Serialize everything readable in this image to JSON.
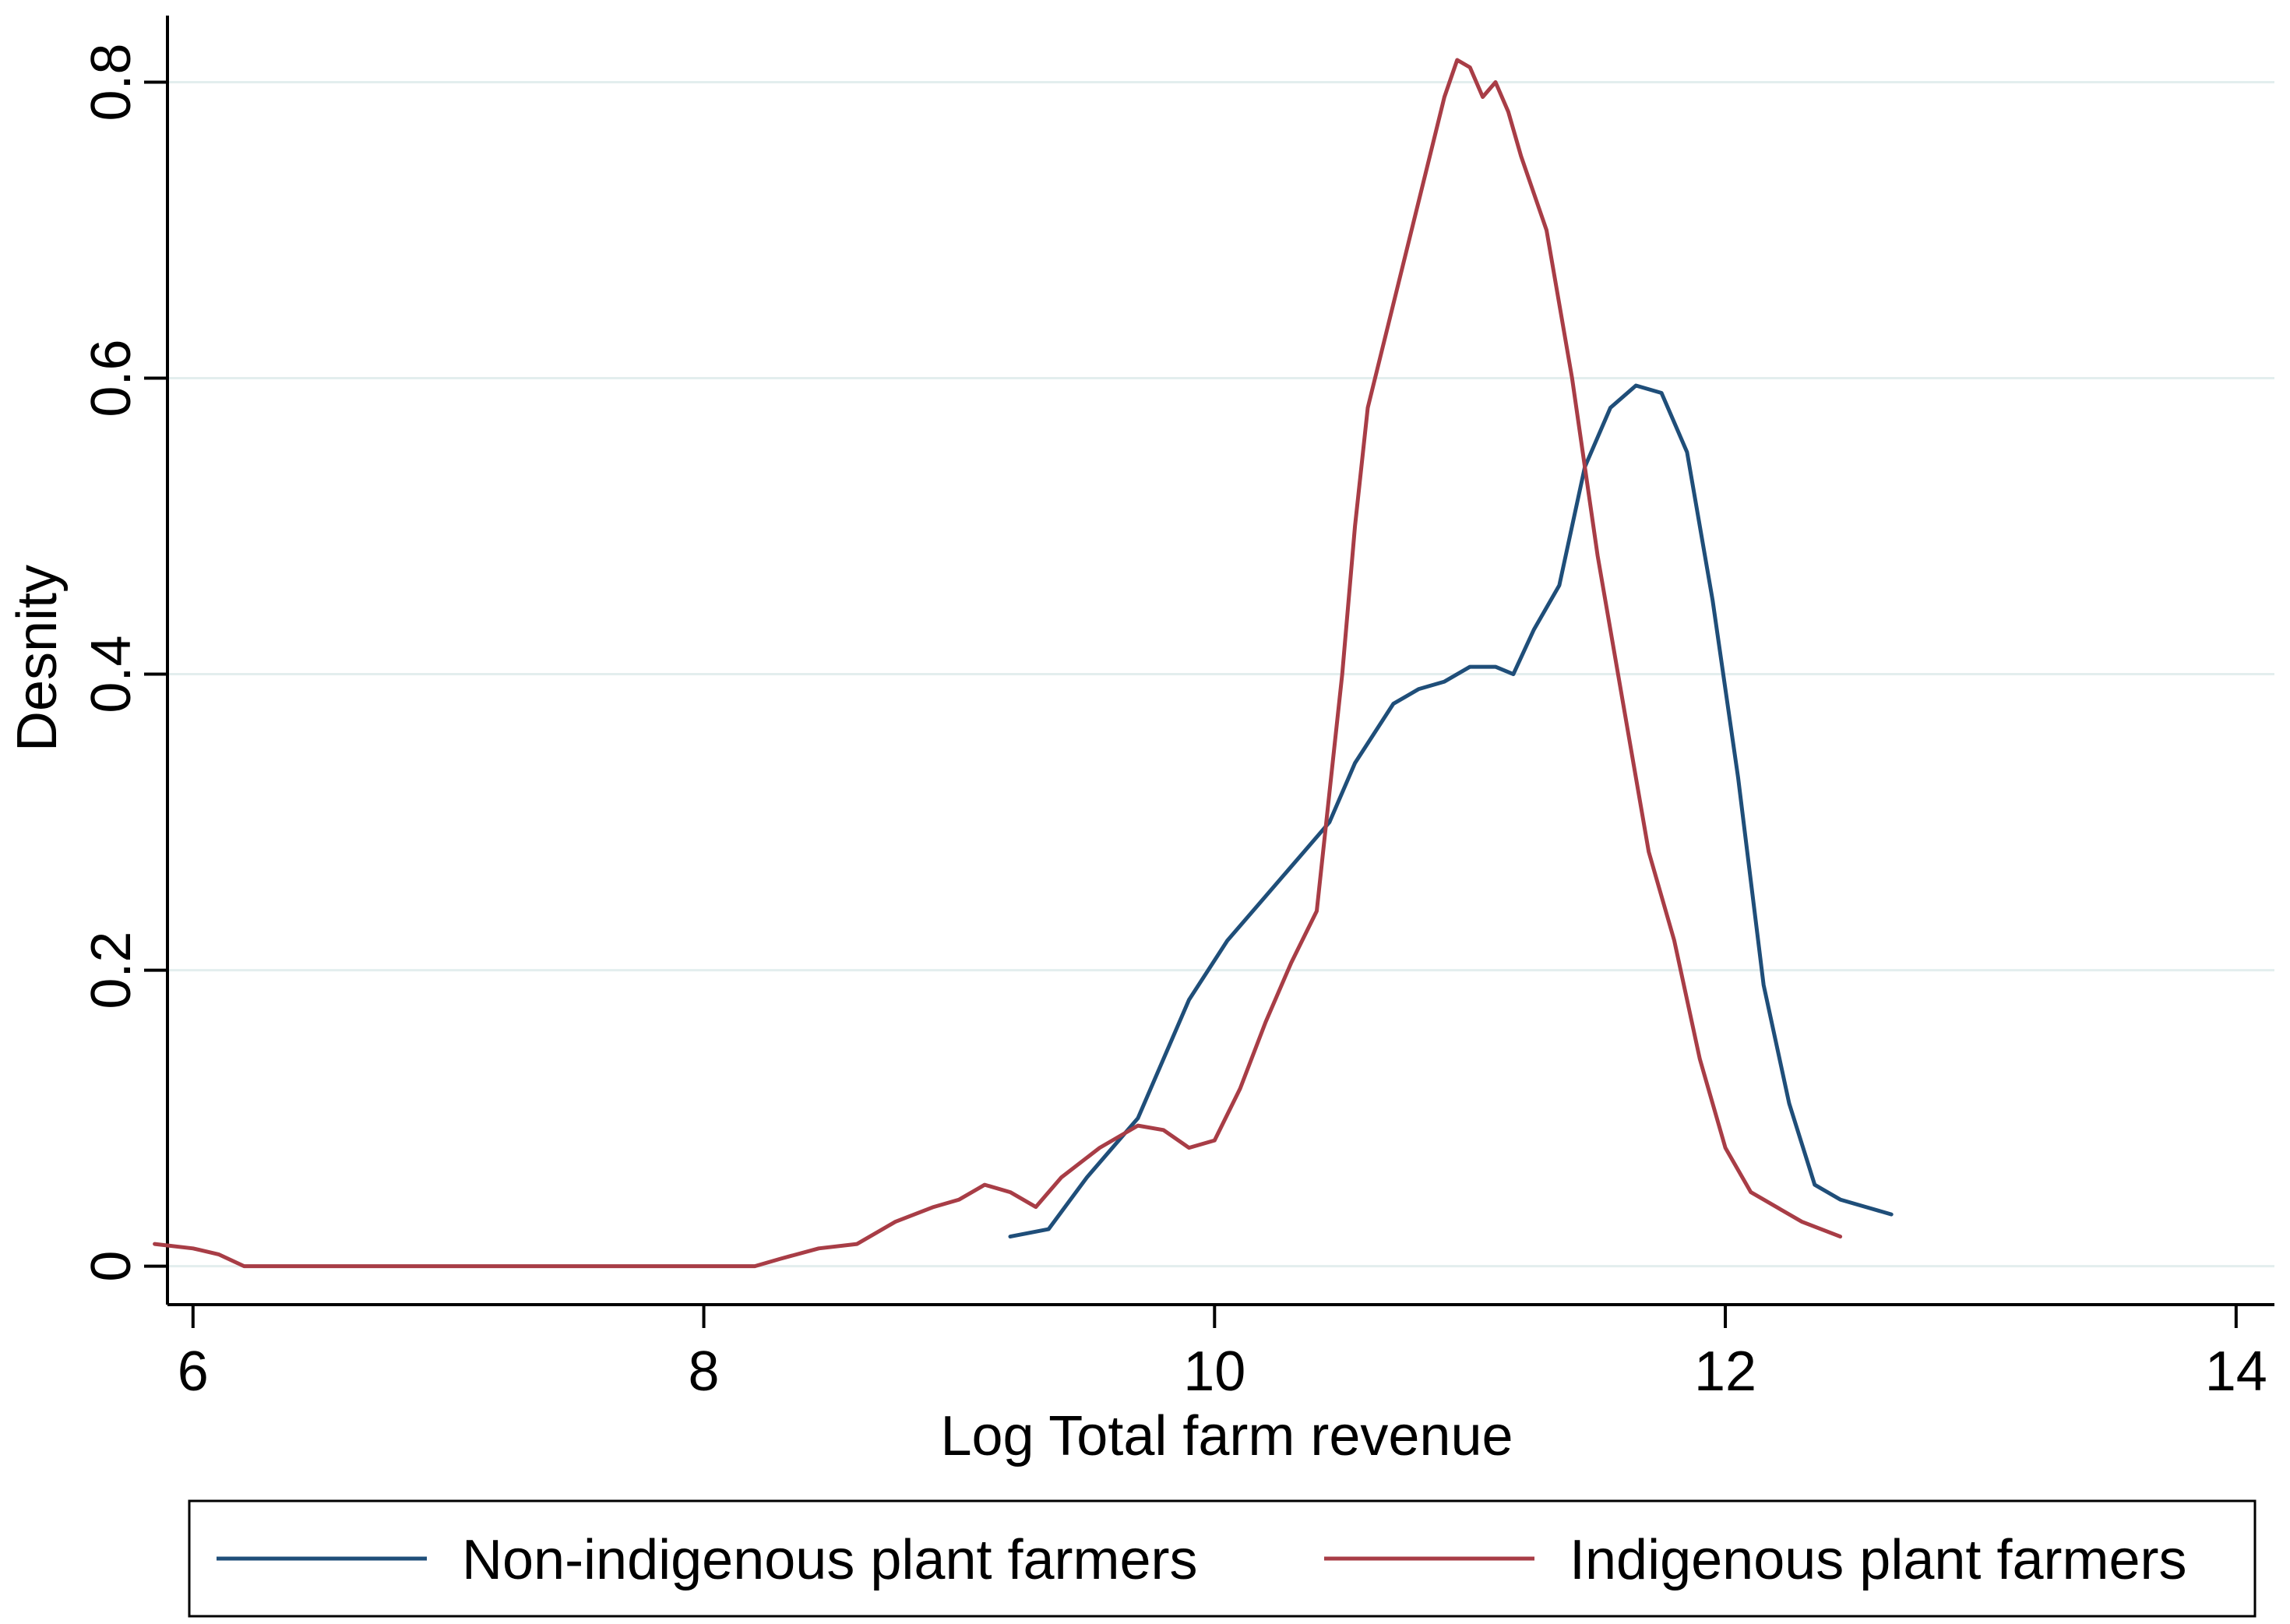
{
  "chart_data": {
    "type": "line",
    "xlabel": "Log Total farm revenue",
    "ylabel": "Desnity",
    "xlim": [
      5.9,
      14.15
    ],
    "ylim": [
      -0.026,
      0.845
    ],
    "xticks": [
      6,
      8,
      10,
      12,
      14
    ],
    "xtick_labels": [
      "6",
      "8",
      "10",
      "12",
      "14"
    ],
    "yticks": [
      0,
      0.2,
      0.4,
      0.6,
      0.8
    ],
    "ytick_labels": [
      "0",
      "0.2",
      "0.4",
      "0.6",
      "0.8"
    ],
    "grid": "horizontal",
    "legend_position": "bottom",
    "series": [
      {
        "name": "Non-indigenous plant farmers",
        "color": "#1f4e79",
        "x": [
          9.2,
          9.35,
          9.5,
          9.7,
          9.8,
          9.9,
          10.05,
          10.2,
          10.35,
          10.45,
          10.55,
          10.7,
          10.8,
          10.9,
          11.0,
          11.1,
          11.17,
          11.25,
          11.35,
          11.45,
          11.55,
          11.65,
          11.75,
          11.85,
          11.95,
          12.05,
          12.15,
          12.25,
          12.35,
          12.45,
          12.55,
          12.65
        ],
        "y": [
          0.02,
          0.025,
          0.06,
          0.1,
          0.14,
          0.18,
          0.22,
          0.25,
          0.28,
          0.3,
          0.34,
          0.38,
          0.39,
          0.395,
          0.405,
          0.405,
          0.4,
          0.43,
          0.46,
          0.54,
          0.58,
          0.595,
          0.59,
          0.55,
          0.45,
          0.33,
          0.19,
          0.11,
          0.055,
          0.045,
          0.04,
          0.035
        ]
      },
      {
        "name": "Indigenous plant farmers",
        "color": "#a83d46",
        "x": [
          5.85,
          6.0,
          6.1,
          6.2,
          6.5,
          7.0,
          7.5,
          8.0,
          8.2,
          8.3,
          8.45,
          8.6,
          8.75,
          8.9,
          9.0,
          9.1,
          9.2,
          9.3,
          9.4,
          9.55,
          9.7,
          9.8,
          9.9,
          10.0,
          10.1,
          10.2,
          10.3,
          10.4,
          10.45,
          10.5,
          10.55,
          10.6,
          10.7,
          10.8,
          10.9,
          10.95,
          11.0,
          11.05,
          11.1,
          11.15,
          11.2,
          11.3,
          11.4,
          11.5,
          11.6,
          11.7,
          11.8,
          11.9,
          12.0,
          12.1,
          12.2,
          12.3,
          12.45
        ],
        "y": [
          0.015,
          0.012,
          0.008,
          0.0,
          0.0,
          0.0,
          0.0,
          0.0,
          0.0,
          0.005,
          0.012,
          0.015,
          0.03,
          0.04,
          0.045,
          0.055,
          0.05,
          0.04,
          0.06,
          0.08,
          0.095,
          0.092,
          0.08,
          0.085,
          0.12,
          0.165,
          0.205,
          0.24,
          0.32,
          0.4,
          0.5,
          0.58,
          0.65,
          0.72,
          0.79,
          0.815,
          0.81,
          0.79,
          0.8,
          0.78,
          0.75,
          0.7,
          0.6,
          0.48,
          0.38,
          0.28,
          0.22,
          0.14,
          0.08,
          0.05,
          0.04,
          0.03,
          0.02
        ]
      }
    ]
  }
}
